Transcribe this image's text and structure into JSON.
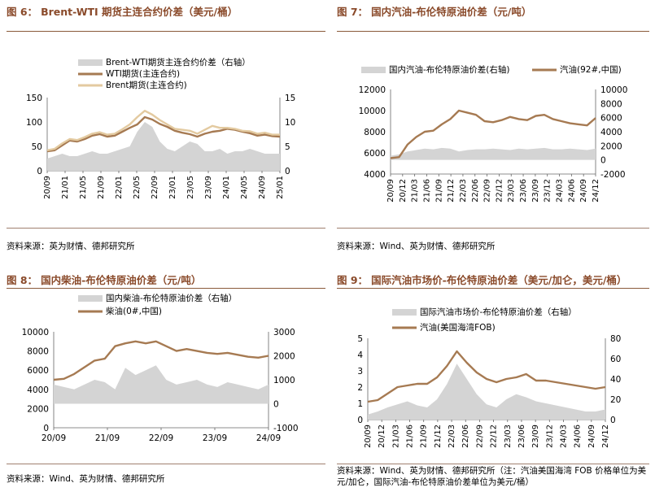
{
  "colors": {
    "title": "#8a4a2a",
    "area": "#d4d4d4",
    "lineA": "#a67a52",
    "lineB": "#e3caa0"
  },
  "panels": [
    {
      "title_label": "图 6：",
      "title_text": "Brent-WTI 期货主连合约价差（美元/桶）",
      "source": "资料来源：英为财情、德邦研究所",
      "chart_data": {
        "type": "line",
        "legend": [
          "Brent-WTI期货主连合约价差（右轴）",
          "WTI期货(主连合约)",
          "Brent期货(主连合约)"
        ],
        "x_ticks": [
          "20/09",
          "21/01",
          "21/05",
          "21/09",
          "22/01",
          "22/05",
          "22/09",
          "23/01",
          "23/05",
          "23/09",
          "24/01",
          "24/05",
          "24/09",
          "25/01"
        ],
        "left_ylim": [
          0,
          150
        ],
        "left_ticks": [
          "0",
          "50",
          "100",
          "150"
        ],
        "right_ylim": [
          0,
          15
        ],
        "right_ticks": [
          "0",
          "5",
          "10",
          "15"
        ],
        "series": [
          {
            "name": "WTI期货(主连合约)",
            "axis": "left",
            "values": [
              40,
              42,
              52,
              62,
              60,
              65,
              72,
              75,
              70,
              72,
              80,
              88,
              95,
              110,
              105,
              96,
              90,
              82,
              78,
              75,
              70,
              76,
              80,
              82,
              86,
              84,
              80,
              77,
              72,
              74,
              71,
              70
            ]
          },
          {
            "name": "Brent期货(主连合约)",
            "axis": "left",
            "values": [
              42,
              45,
              56,
              65,
              63,
              69,
              76,
              79,
              74,
              76,
              85,
              95,
              110,
              123,
              115,
              104,
              95,
              86,
              84,
              82,
              76,
              84,
              92,
              88,
              88,
              86,
              82,
              81,
              76,
              78,
              74,
              74
            ]
          },
          {
            "name": "Brent-WTI期货主连合约价差（右轴）",
            "axis": "right",
            "type": "area",
            "values": [
              2.5,
              3,
              3.5,
              3,
              3,
              3.5,
              4,
              3.5,
              3.5,
              4,
              4.5,
              5,
              8,
              10,
              9,
              6,
              4.5,
              4,
              5,
              6,
              5.5,
              4,
              4,
              4.5,
              3.5,
              4,
              4,
              4.5,
              4,
              3.5,
              3.5,
              3.5
            ]
          }
        ]
      }
    },
    {
      "title_label": "图 7：",
      "title_text": "国内汽油-布伦特原油价差（元/吨）",
      "source": "资料来源：Wind、英为财情、德邦研究所",
      "chart_data": {
        "type": "line",
        "legend": [
          "国内汽油-布伦特原油价差(右轴)",
          "汽油(92#,中国)"
        ],
        "x_ticks": [
          "20/09",
          "20/12",
          "21/03",
          "21/06",
          "21/09",
          "21/12",
          "22/03",
          "22/06",
          "22/09",
          "22/12",
          "23/03",
          "23/06",
          "23/09",
          "23/12",
          "24/03",
          "24/06",
          "24/09",
          "24/12"
        ],
        "left_ylim": [
          4000,
          12000
        ],
        "left_ticks": [
          "4000",
          "6000",
          "8000",
          "10000",
          "12000"
        ],
        "right_ylim": [
          -2000,
          10000
        ],
        "right_ticks": [
          "-2000",
          "0",
          "2000",
          "4000",
          "6000",
          "8000",
          "10000"
        ],
        "series": [
          {
            "name": "汽油(92#,中国)",
            "axis": "left",
            "values": [
              5500,
              5600,
              6800,
              7500,
              8000,
              8100,
              8700,
              9200,
              10000,
              9800,
              9600,
              9000,
              8900,
              9100,
              9400,
              9200,
              9100,
              9500,
              9600,
              9200,
              9000,
              8800,
              8700,
              8600,
              9300
            ]
          },
          {
            "name": "国内汽油-布伦特原油价差(右轴)",
            "axis": "right",
            "type": "area",
            "values": [
              600,
              800,
              1200,
              1400,
              1600,
              1500,
              1700,
              1600,
              1200,
              1400,
              1500,
              1500,
              1600,
              1500,
              1400,
              1600,
              1500,
              1600,
              1700,
              1500,
              1500,
              1600,
              1500,
              1400,
              1600
            ]
          }
        ]
      }
    },
    {
      "title_label": "图 8：",
      "title_text": "国内柴油-布伦特原油价差（元/吨）",
      "source": "资料来源：Wind、英为财情、德邦研究所",
      "chart_data": {
        "type": "line",
        "legend": [
          "国内柴油-布伦特原油价差（右轴）",
          "柴油(0#,中国)"
        ],
        "x_ticks": [
          "20/09",
          "21/09",
          "22/09",
          "23/09",
          "24/09"
        ],
        "left_ylim": [
          0,
          10000
        ],
        "left_ticks": [
          "0",
          "2000",
          "4000",
          "6000",
          "8000",
          "10000"
        ],
        "right_ylim": [
          -1000,
          3000
        ],
        "right_ticks": [
          "-1000",
          "0",
          "1000",
          "2000",
          "3000"
        ],
        "series": [
          {
            "name": "柴油(0#,中国)",
            "axis": "left",
            "values": [
              5000,
              5100,
              5600,
              6300,
              7000,
              7200,
              8500,
              8800,
              9000,
              8800,
              9000,
              8500,
              8000,
              8200,
              8000,
              7800,
              7700,
              7800,
              7600,
              7400,
              7300,
              7500
            ]
          },
          {
            "name": "国内柴油-布伦特原油价差（右轴）",
            "axis": "right",
            "type": "area",
            "values": [
              800,
              700,
              600,
              800,
              1000,
              900,
              600,
              1500,
              1200,
              1400,
              1600,
              1000,
              800,
              900,
              1000,
              800,
              700,
              900,
              800,
              700,
              600,
              800
            ]
          }
        ]
      }
    },
    {
      "title_label": "图 9：",
      "title_text": "国际汽油市场价-布伦特原油价差（美元/加仑，美元/桶）",
      "source": "资料来源：Wind、英为财情、德邦研究所（注：汽油美国海湾 FOB 价格单位为美元/加仑，国际汽油-布伦特原油价差单位为美元/桶）",
      "chart_data": {
        "type": "line",
        "legend": [
          "国际汽油市场价-布伦特原油价差（右轴）",
          "汽油(美国海湾FOB)"
        ],
        "x_ticks": [
          "20/09",
          "20/12",
          "21/03",
          "21/06",
          "21/09",
          "21/12",
          "22/03",
          "22/06",
          "22/09",
          "22/12",
          "23/03",
          "23/06",
          "23/09",
          "23/12",
          "24/03",
          "24/06",
          "24/09",
          "24/12"
        ],
        "left_ylim": [
          0,
          5
        ],
        "left_ticks": [
          "0",
          "1",
          "2",
          "3",
          "4",
          "5"
        ],
        "right_ylim": [
          0,
          80
        ],
        "right_ticks": [
          "0",
          "20",
          "40",
          "60",
          "80"
        ],
        "series": [
          {
            "name": "汽油(美国海湾FOB)",
            "axis": "left",
            "values": [
              1.1,
              1.2,
              1.6,
              2.0,
              2.1,
              2.2,
              2.2,
              2.6,
              3.3,
              4.2,
              3.5,
              2.9,
              2.5,
              2.3,
              2.5,
              2.6,
              2.8,
              2.4,
              2.4,
              2.3,
              2.2,
              2.1,
              2.0,
              1.9,
              2.0
            ]
          },
          {
            "name": "国际汽油市场价-布伦特原油价差（右轴）",
            "axis": "right",
            "type": "area",
            "values": [
              5,
              8,
              12,
              15,
              18,
              14,
              12,
              20,
              35,
              55,
              40,
              25,
              15,
              12,
              20,
              25,
              22,
              18,
              16,
              14,
              12,
              10,
              8,
              8,
              10
            ]
          }
        ]
      }
    }
  ]
}
